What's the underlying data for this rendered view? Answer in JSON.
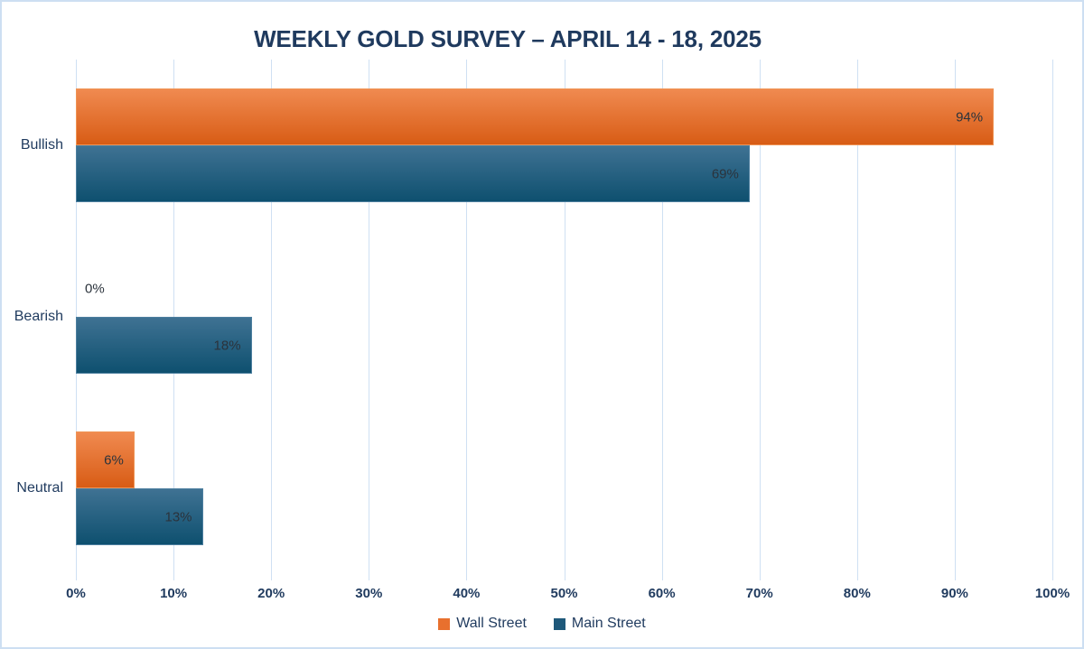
{
  "title": "WEEKLY GOLD SURVEY – APRIL 14 - 18, 2025",
  "chart_data": {
    "type": "bar",
    "orientation": "horizontal",
    "title": "WEEKLY GOLD SURVEY – APRIL 14 - 18, 2025",
    "categories": [
      "Bullish",
      "Bearish",
      "Neutral"
    ],
    "series": [
      {
        "name": "Wall Street",
        "values": [
          94,
          0,
          6
        ],
        "value_labels": [
          "94%",
          "0%",
          "6%"
        ],
        "color": "#e8702e",
        "gradient_top": "#f08a50",
        "gradient_bottom": "#d85c15",
        "border": "#ef9455"
      },
      {
        "name": "Main Street",
        "values": [
          69,
          18,
          13
        ],
        "value_labels": [
          "69%",
          "18%",
          "13%"
        ],
        "color": "#1e587a",
        "gradient_top": "#3f7293",
        "gradient_bottom": "#0e506f",
        "border": "#4d7f9f"
      }
    ],
    "value_suffix": "%",
    "xlabel": "",
    "ylabel": "",
    "xlim": [
      0,
      100
    ],
    "x_ticks": [
      "0%",
      "10%",
      "20%",
      "30%",
      "40%",
      "50%",
      "60%",
      "70%",
      "80%",
      "90%",
      "100%"
    ],
    "grid": true,
    "legend_position": "bottom"
  },
  "colors": {
    "background": "#ffffff",
    "frame_border": "#cddff2",
    "gridline": "#cfe0f3",
    "navy_text": "#1f3a5e",
    "data_label": "#2b333c"
  }
}
